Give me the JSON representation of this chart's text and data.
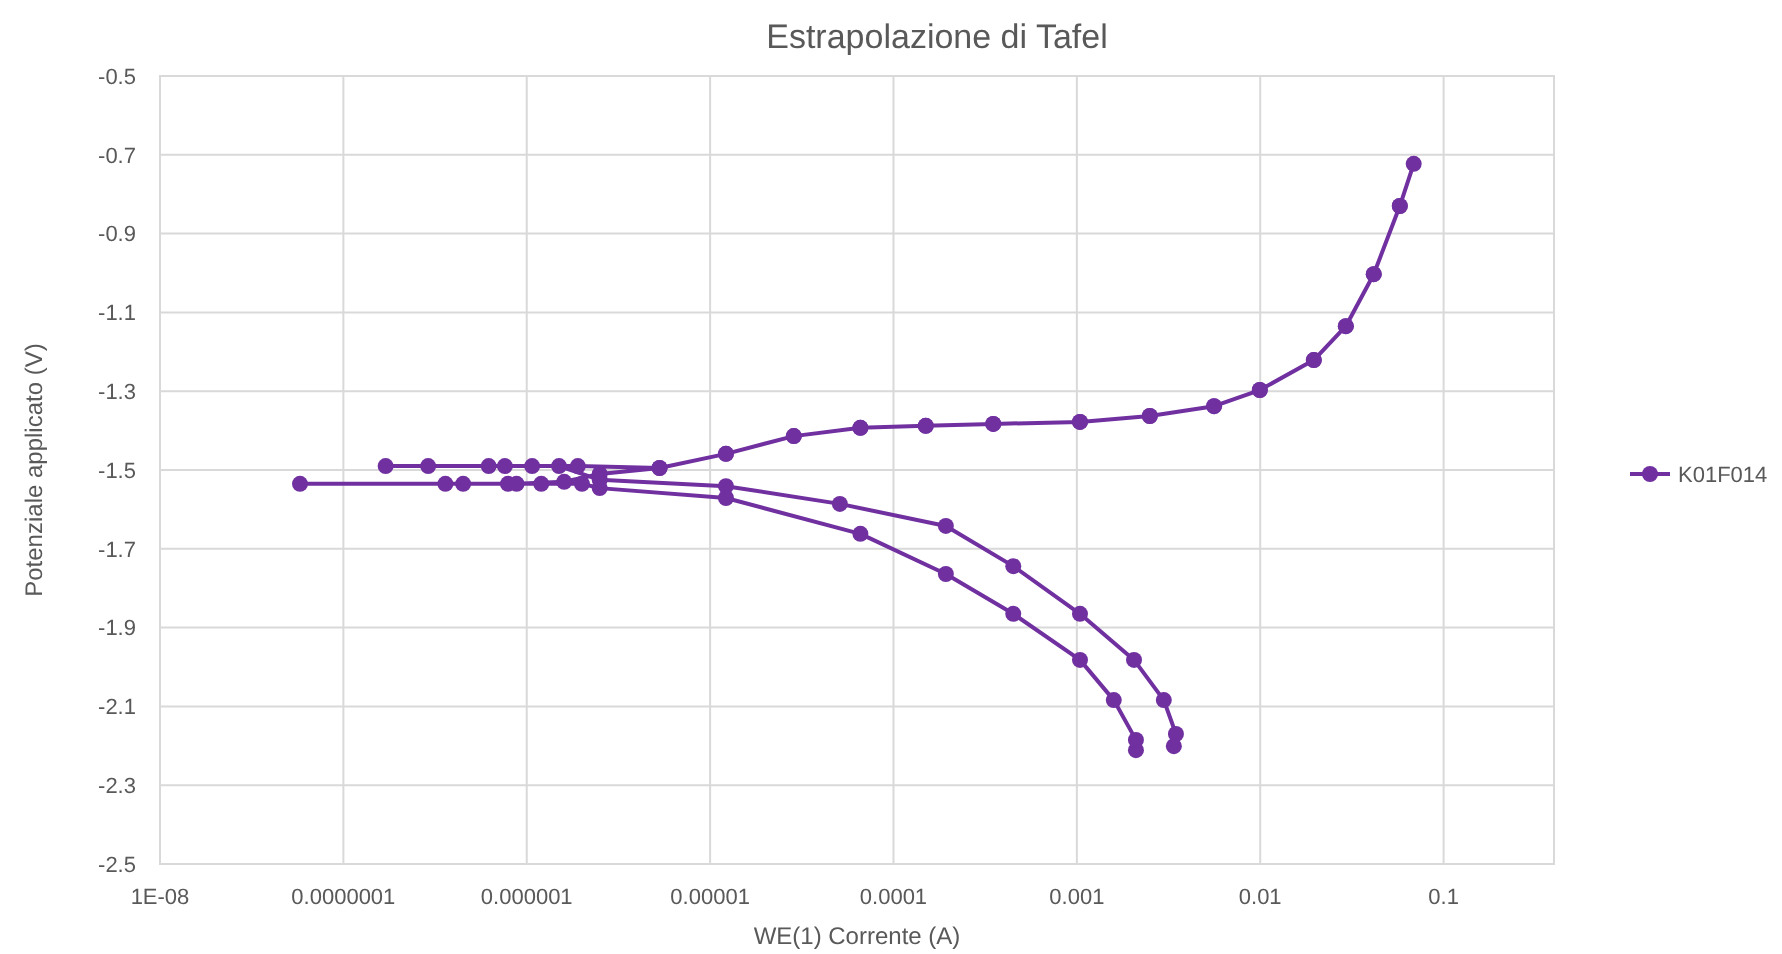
{
  "chart_data": {
    "type": "line",
    "title": "Estrapolazione di Tafel",
    "xlabel": "WE(1) Corrente (A)",
    "ylabel": "Potenziale applicato (V)",
    "log": "x",
    "grid": true,
    "legend": "right",
    "marker": "circle",
    "line_style": "solid",
    "xlim": [
      1e-08,
      0.4
    ],
    "xticks": [
      {
        "value": 1e-08,
        "label": "1E-08"
      },
      {
        "value": 1e-07,
        "label": "0.0000001"
      },
      {
        "value": 1e-06,
        "label": "0.000001"
      },
      {
        "value": 1e-05,
        "label": "0.00001"
      },
      {
        "value": 0.0001,
        "label": "0.0001"
      },
      {
        "value": 0.001,
        "label": "0.001"
      },
      {
        "value": 0.01,
        "label": "0.01"
      },
      {
        "value": 0.1,
        "label": "0.1"
      }
    ],
    "ylim": [
      -2.5,
      -0.5
    ],
    "yticks": [
      -2.5,
      -2.3,
      -2.1,
      -1.9,
      -1.7,
      -1.5,
      -1.3,
      -1.1,
      -0.9,
      -0.7,
      -0.5
    ],
    "series": [
      {
        "name": "K01F014",
        "color": "#7030a0",
        "x": [
          0.0021,
          0.0021,
          0.00159,
          0.00104,
          0.00045,
          0.000193,
          6.6e-05,
          1.22e-05,
          2.5e-06,
          2e-06,
          1.2e-06,
          7.9e-07,
          3.6e-07,
          5.8e-08,
          4.5e-07,
          8.8e-07,
          1.6e-06,
          2.5e-06,
          5.3e-06,
          1.22e-05,
          2.86e-05,
          6.6e-05,
          0.00015,
          0.00035,
          0.00104,
          0.0025,
          0.0056,
          0.00995,
          0.0196,
          0.0293,
          0.0416,
          0.0577,
          0.0687,
          0.0577,
          0.0416,
          0.0293,
          0.0196,
          0.00995,
          0.0056,
          0.0025,
          0.00104,
          0.00035,
          0.00015,
          6.6e-05,
          2.86e-05,
          1.22e-05,
          5.3e-06,
          1.9e-06,
          1.07e-06,
          6.2e-07,
          1.7e-07,
          2.9e-07,
          7.6e-07,
          1.5e-06,
          2.5e-06,
          1.22e-05,
          5.1e-05,
          0.000193,
          0.00045,
          0.00104,
          0.00205,
          0.00298,
          0.00347,
          0.00338
        ],
        "values": [
          -2.211,
          -2.185,
          -2.084,
          -1.982,
          -1.865,
          -1.764,
          -1.662,
          -1.571,
          -1.546,
          -1.535,
          -1.535,
          -1.535,
          -1.535,
          -1.535,
          -1.535,
          -1.535,
          -1.53,
          -1.51,
          -1.495,
          -1.459,
          -1.414,
          -1.393,
          -1.388,
          -1.383,
          -1.378,
          -1.363,
          -1.338,
          -1.297,
          -1.221,
          -1.135,
          -1.003,
          -0.83,
          -0.723,
          -0.83,
          -1.003,
          -1.135,
          -1.221,
          -1.297,
          -1.338,
          -1.363,
          -1.378,
          -1.383,
          -1.388,
          -1.393,
          -1.414,
          -1.459,
          -1.495,
          -1.49,
          -1.49,
          -1.49,
          -1.49,
          -1.49,
          -1.49,
          -1.49,
          -1.525,
          -1.541,
          -1.586,
          -1.642,
          -1.744,
          -1.865,
          -1.982,
          -2.084,
          -2.17,
          -2.201
        ]
      }
    ]
  }
}
